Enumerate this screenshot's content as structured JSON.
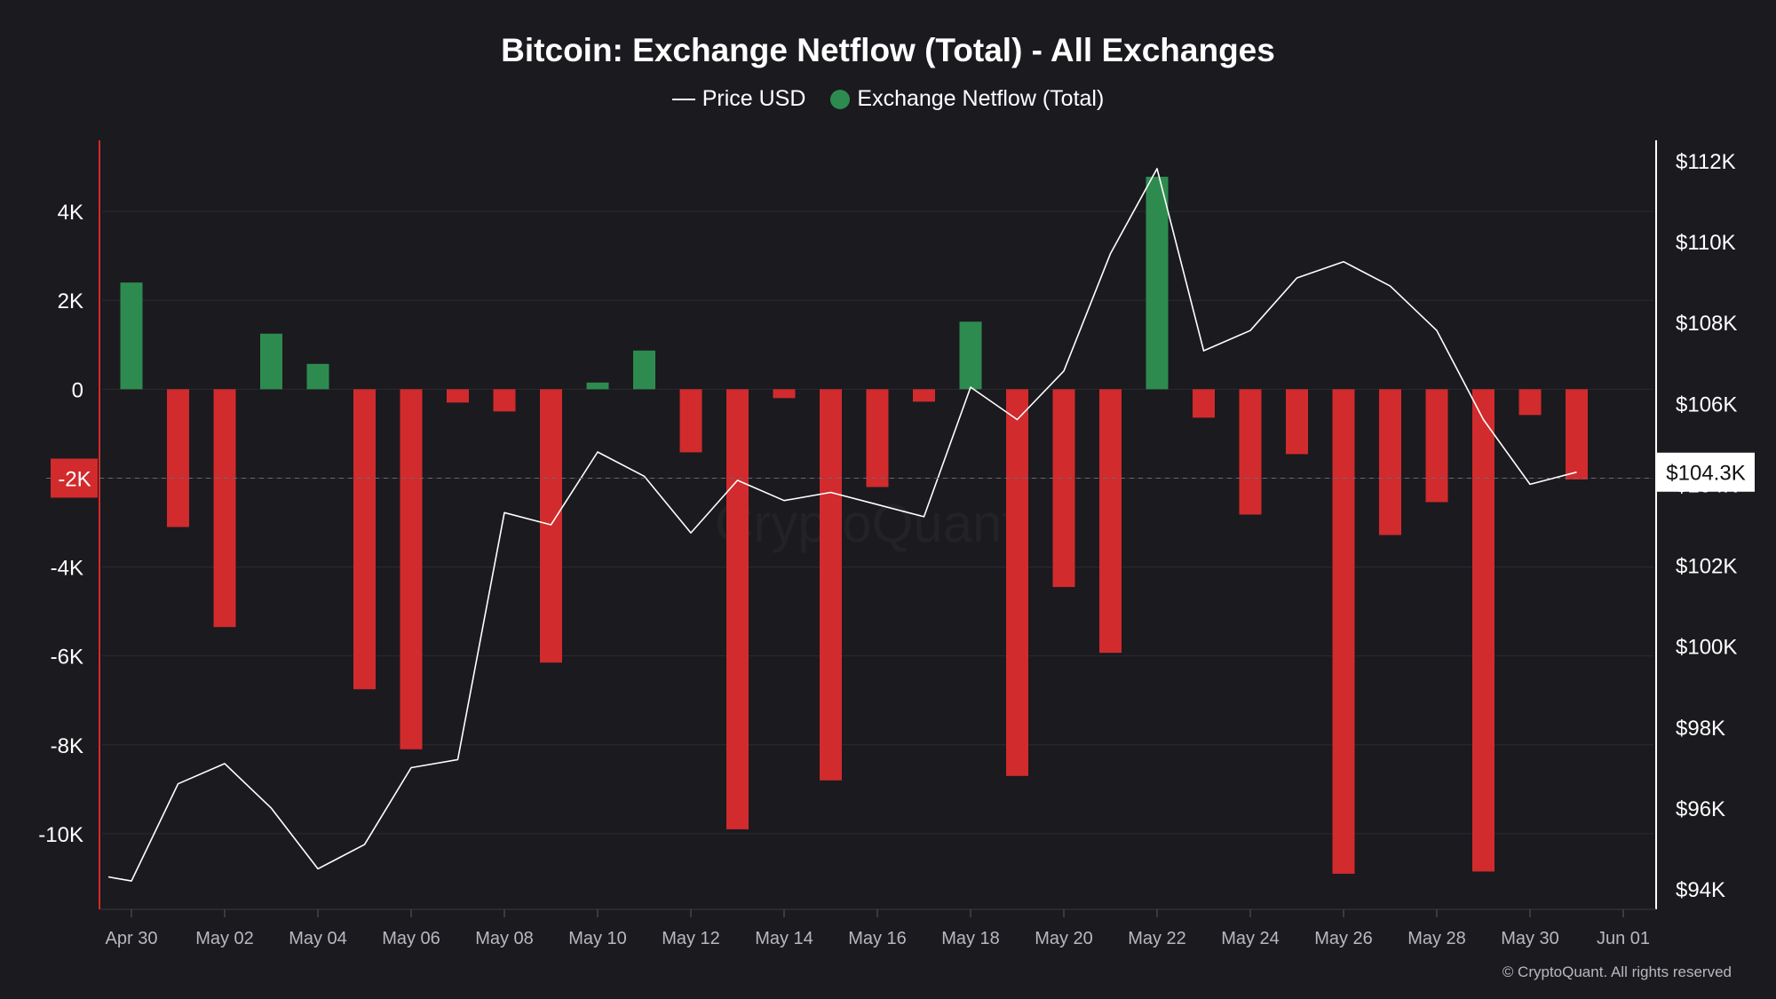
{
  "chart_data": {
    "type": "bar+line",
    "title": "Bitcoin: Exchange Netflow (Total) - All Exchanges",
    "legend": [
      {
        "name": "Price USD",
        "marker": "line",
        "color": "#ffffff"
      },
      {
        "name": "Exchange Netflow (Total)",
        "marker": "dot",
        "color": "#2e8b4f"
      }
    ],
    "legend_position": "top-center",
    "dates": [
      "Apr 29",
      "Apr 30",
      "May 01",
      "May 02",
      "May 03",
      "May 04",
      "May 05",
      "May 06",
      "May 07",
      "May 08",
      "May 09",
      "May 10",
      "May 11",
      "May 12",
      "May 13",
      "May 14",
      "May 15",
      "May 16",
      "May 17",
      "May 18",
      "May 19",
      "May 20",
      "May 21",
      "May 22",
      "May 23",
      "May 24",
      "May 25",
      "May 26",
      "May 27",
      "May 28",
      "May 29",
      "May 30",
      "May 31"
    ],
    "series": [
      {
        "name": "Exchange Netflow (Total)",
        "axis": "left",
        "type": "bar",
        "positive_color": "#2e8b4f",
        "negative_color": "#d12b2d",
        "x": [
          "Apr 30",
          "May 01",
          "May 02",
          "May 03",
          "May 04",
          "May 05",
          "May 06",
          "May 07",
          "May 08",
          "May 09",
          "May 10",
          "May 11",
          "May 12",
          "May 13",
          "May 14",
          "May 15",
          "May 16",
          "May 17",
          "May 18",
          "May 19",
          "May 20",
          "May 21",
          "May 22",
          "May 23",
          "May 24",
          "May 25",
          "May 26",
          "May 27",
          "May 28",
          "May 29",
          "May 30",
          "May 31"
        ],
        "values": [
          2400,
          -3100,
          -5350,
          1250,
          570,
          -6750,
          -8100,
          -300,
          -500,
          -6150,
          150,
          870,
          -1420,
          -9900,
          -200,
          -8800,
          -2200,
          -280,
          1520,
          -8700,
          -4450,
          -5930,
          4780,
          -640,
          -2820,
          -1460,
          -10900,
          -3280,
          -2540,
          -10850,
          -580,
          -2030
        ]
      },
      {
        "name": "Price USD",
        "axis": "right",
        "type": "line",
        "color": "#ffffff",
        "x": [
          "Apr 29",
          "Apr 30",
          "May 01",
          "May 02",
          "May 03",
          "May 04",
          "May 05",
          "May 06",
          "May 07",
          "May 08",
          "May 09",
          "May 10",
          "May 11",
          "May 12",
          "May 13",
          "May 14",
          "May 15",
          "May 16",
          "May 17",
          "May 18",
          "May 19",
          "May 20",
          "May 21",
          "May 22",
          "May 23",
          "May 24",
          "May 25",
          "May 26",
          "May 27",
          "May 28",
          "May 29",
          "May 30",
          "May 31"
        ],
        "values": [
          94300,
          94200,
          96600,
          97100,
          96000,
          94500,
          95100,
          97000,
          97200,
          103300,
          103000,
          104800,
          104200,
          102800,
          104100,
          103600,
          103800,
          103500,
          103200,
          106400,
          105600,
          106800,
          109700,
          111800,
          107300,
          107800,
          109100,
          109500,
          108900,
          107800,
          105600,
          104000,
          104300
        ]
      }
    ],
    "y_left": {
      "ylim": [
        -11700,
        5600
      ],
      "ticks": [
        4000,
        2000,
        0,
        -4000,
        -6000,
        -8000,
        -10000
      ],
      "tick_labels": [
        "4K",
        "2K",
        "0",
        "-4K",
        "-6K",
        "-8K",
        "-10K"
      ]
    },
    "y_right": {
      "ylim": [
        93500,
        112500
      ],
      "ticks": [
        112000,
        110000,
        108000,
        106000,
        104000,
        102000,
        100000,
        98000,
        96000,
        94000
      ],
      "tick_labels": [
        "$112K",
        "$110K",
        "$108K",
        "$106K",
        "$104K",
        "$102K",
        "$100K",
        "$98K",
        "$96K",
        "$94K"
      ]
    },
    "x_ticks": [
      "Apr 30",
      "May 02",
      "May 04",
      "May 06",
      "May 08",
      "May 10",
      "May 12",
      "May 14",
      "May 16",
      "May 18",
      "May 20",
      "May 22",
      "May 24",
      "May 26",
      "May 28",
      "May 30",
      "Jun 01"
    ],
    "crosshair_left_label": "-2K",
    "crosshair_left_value": -2000,
    "current_price_label": "$104.3K",
    "current_price_value": 104300,
    "grid": true,
    "watermark": "CryptoQuant"
  },
  "footer": {
    "copyright": "© CryptoQuant. All rights reserved"
  }
}
